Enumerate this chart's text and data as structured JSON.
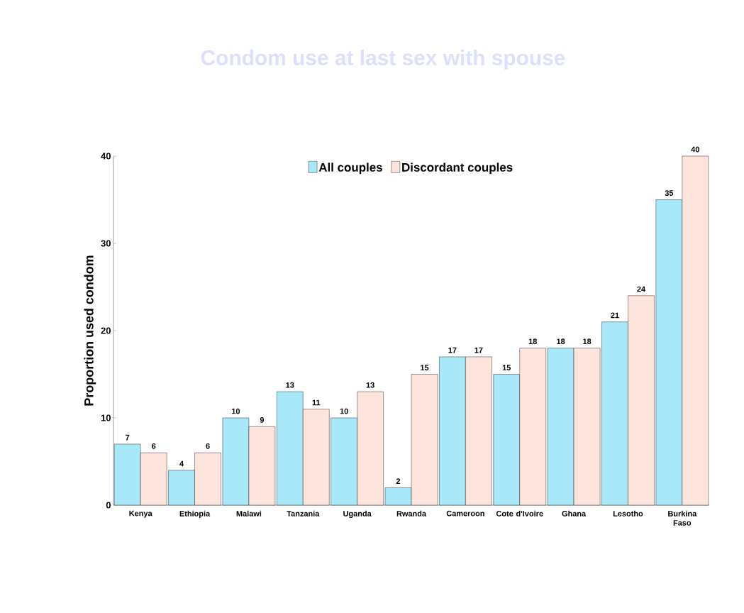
{
  "chart_data": {
    "type": "bar",
    "title": "Condom use at last sex with spouse",
    "ylabel": "Proportion used condom",
    "categories": [
      "Kenya",
      "Ethiopia",
      "Malawi",
      "Tanzania",
      "Uganda",
      "Rwanda",
      "Cameroon",
      "Cote d'Ivoire",
      "Ghana",
      "Lesotho",
      "Burkina Faso"
    ],
    "series": [
      {
        "name": "All couples",
        "color": "#a8e8f8",
        "values": [
          7,
          4,
          10,
          13,
          10,
          2,
          17,
          15,
          18,
          21,
          35
        ]
      },
      {
        "name": "Discordant couples",
        "color": "#fde4dc",
        "values": [
          6,
          6,
          9,
          11,
          13,
          15,
          17,
          18,
          18,
          24,
          40
        ]
      }
    ],
    "ylim": [
      0,
      40
    ],
    "yticks": [
      0,
      10,
      20,
      30,
      40
    ],
    "grid": false,
    "legend": "top",
    "data_labels": true
  }
}
